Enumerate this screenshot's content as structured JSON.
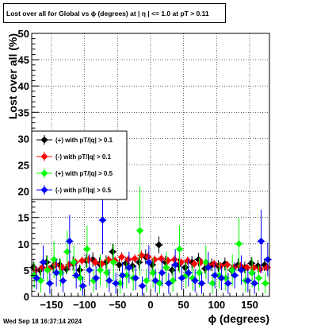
{
  "chart_data": {
    "type": "scatter",
    "title": "Lost over all for Global vs ϕ (degrees) at |  η | <= 1.0 at pT > 0.11",
    "xlabel": "ϕ (degrees)",
    "ylabel": "Lost over all (%)",
    "xlim": [
      -180,
      180
    ],
    "ylim": [
      0,
      50
    ],
    "xticks": [
      "−150",
      "−100",
      "−50",
      "0",
      "50",
      "100",
      "150"
    ],
    "yticks": [
      "0",
      "5",
      "10",
      "15",
      "20",
      "25",
      "30",
      "35",
      "40",
      "45",
      "50"
    ],
    "grid": true,
    "legend_position": "middle-left",
    "series": [
      {
        "name": "(+) with pT/|q| > 0.1",
        "color": "#000000",
        "marker": "diamond",
        "x": [
          -175,
          -165,
          -155,
          -145,
          -135,
          -125,
          -115,
          -105,
          -95,
          -85,
          -75,
          -65,
          -55,
          -45,
          -35,
          -25,
          -15,
          -5,
          5,
          15,
          25,
          35,
          45,
          55,
          65,
          75,
          85,
          95,
          105,
          115,
          125,
          135,
          145,
          155,
          165,
          175
        ],
        "y": [
          5.5,
          5.0,
          6.5,
          5.8,
          6.0,
          5.2,
          6.3,
          5.0,
          6.8,
          7.0,
          6.2,
          6.5,
          8.5,
          6.0,
          6.3,
          5.8,
          6.5,
          7.5,
          6.0,
          9.8,
          6.5,
          5.0,
          6.0,
          5.5,
          6.5,
          7.0,
          5.3,
          6.0,
          5.8,
          6.2,
          5.0,
          6.0,
          5.5,
          6.3,
          5.8,
          6.0
        ],
        "err": [
          1.2,
          1.0,
          1.3,
          1.2,
          1.2,
          1.0,
          1.3,
          1.0,
          1.3,
          1.4,
          1.2,
          1.3,
          1.5,
          1.2,
          1.2,
          1.1,
          1.2,
          1.4,
          1.2,
          1.6,
          1.2,
          1.0,
          1.2,
          1.1,
          1.2,
          1.3,
          1.0,
          1.2,
          1.1,
          1.2,
          1.0,
          1.2,
          1.1,
          1.2,
          1.1,
          1.2
        ]
      },
      {
        "name": "(-) with pT/|q| > 0.1",
        "color": "#ff0000",
        "marker": "diamond",
        "x": [
          -175,
          -165,
          -155,
          -145,
          -135,
          -125,
          -115,
          -105,
          -95,
          -85,
          -75,
          -65,
          -55,
          -45,
          -35,
          -25,
          -15,
          -5,
          5,
          15,
          25,
          35,
          45,
          55,
          65,
          75,
          85,
          95,
          105,
          115,
          125,
          135,
          145,
          155,
          165,
          175
        ],
        "y": [
          5.0,
          5.5,
          5.2,
          6.0,
          5.5,
          6.0,
          6.5,
          6.8,
          7.0,
          6.5,
          6.2,
          7.0,
          6.8,
          7.5,
          7.0,
          7.2,
          7.8,
          7.5,
          7.0,
          7.2,
          6.8,
          7.0,
          6.5,
          6.8,
          6.2,
          6.5,
          6.0,
          6.2,
          5.8,
          6.0,
          5.5,
          5.8,
          5.5,
          5.5,
          5.2,
          5.5
        ],
        "err": [
          0.7,
          0.7,
          0.7,
          0.8,
          0.7,
          0.8,
          0.8,
          0.8,
          0.8,
          0.8,
          0.8,
          0.8,
          0.8,
          0.9,
          0.8,
          0.8,
          0.9,
          0.9,
          0.8,
          0.8,
          0.8,
          0.8,
          0.8,
          0.8,
          0.8,
          0.8,
          0.8,
          0.8,
          0.7,
          0.8,
          0.7,
          0.7,
          0.7,
          0.7,
          0.7,
          0.7
        ]
      },
      {
        "name": "(+) with pT/|q| > 0.5",
        "color": "#00ff00",
        "marker": "diamond",
        "x": [
          -175,
          -165,
          -155,
          -145,
          -135,
          -125,
          -115,
          -105,
          -95,
          -85,
          -75,
          -65,
          -55,
          -45,
          -35,
          -25,
          -15,
          -5,
          5,
          15,
          25,
          35,
          45,
          55,
          65,
          75,
          85,
          95,
          105,
          115,
          125,
          135,
          145,
          155,
          165,
          175
        ],
        "y": [
          4.0,
          3.0,
          5.0,
          7.0,
          4.5,
          8.5,
          6.5,
          3.5,
          9.0,
          3.0,
          5.0,
          4.5,
          6.5,
          2.5,
          4.0,
          3.5,
          12.5,
          3.0,
          4.5,
          2.5,
          5.5,
          3.0,
          9.0,
          4.0,
          3.5,
          4.5,
          6.5,
          2.5,
          4.0,
          3.5,
          5.0,
          10.0,
          3.0,
          4.5,
          3.5,
          2.5
        ],
        "err": [
          2.5,
          2.2,
          2.8,
          3.5,
          2.6,
          4.0,
          3.2,
          2.4,
          4.5,
          2.2,
          3.0,
          2.8,
          3.5,
          2.0,
          2.5,
          2.4,
          8.5,
          2.2,
          2.8,
          2.0,
          3.0,
          2.2,
          4.5,
          2.5,
          2.4,
          2.8,
          3.2,
          2.0,
          2.5,
          2.4,
          3.0,
          5.0,
          2.2,
          2.8,
          2.4,
          2.0
        ]
      },
      {
        "name": "(-) with pT/|q| > 0.5",
        "color": "#0000ff",
        "marker": "diamond",
        "x": [
          -175,
          -165,
          -155,
          -145,
          -135,
          -125,
          -115,
          -105,
          -95,
          -85,
          -75,
          -65,
          -55,
          -45,
          -35,
          -25,
          -15,
          -5,
          5,
          15,
          25,
          35,
          45,
          55,
          65,
          75,
          85,
          95,
          105,
          115,
          125,
          135,
          145,
          155,
          165,
          175
        ],
        "y": [
          3.5,
          6.5,
          2.5,
          4.5,
          3.0,
          10.5,
          4.0,
          2.0,
          5.0,
          3.5,
          14.5,
          3.0,
          2.5,
          4.0,
          5.5,
          3.5,
          2.0,
          6.5,
          3.0,
          4.5,
          2.5,
          6.0,
          3.5,
          4.5,
          3.0,
          2.5,
          5.5,
          4.0,
          3.5,
          2.5,
          4.0,
          5.0,
          3.0,
          2.5,
          10.5,
          7.0
        ],
        "err": [
          2.2,
          3.2,
          2.0,
          2.6,
          2.2,
          5.0,
          2.5,
          1.8,
          3.0,
          2.3,
          6.5,
          2.2,
          2.0,
          2.5,
          3.0,
          2.3,
          1.8,
          3.2,
          2.2,
          2.6,
          2.0,
          3.0,
          2.3,
          2.6,
          2.2,
          2.0,
          3.0,
          2.5,
          2.3,
          2.0,
          2.5,
          2.8,
          2.2,
          2.0,
          6.0,
          3.2
        ]
      }
    ]
  },
  "footer": {
    "timestamp": "Wed Sep 18 16:37:14 2024"
  }
}
